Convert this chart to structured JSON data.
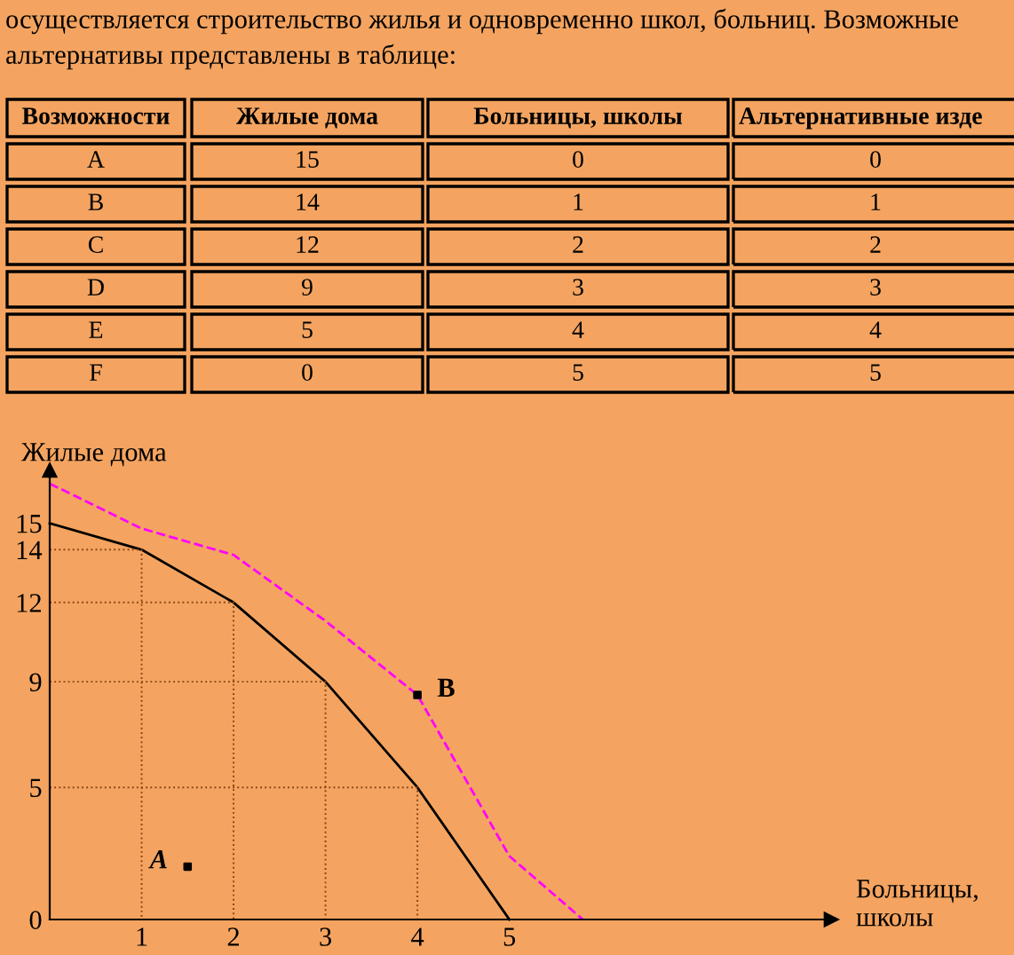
{
  "chart_data": {
    "type": "line",
    "xlabel": "Больницы, школы",
    "ylabel": "Жилые дома",
    "xlim": [
      0,
      8.5
    ],
    "ylim": [
      0,
      17
    ],
    "xticks": [
      1,
      2,
      3,
      4,
      5
    ],
    "yticks": [
      0,
      5,
      9,
      12,
      14,
      15
    ],
    "grid": false,
    "series": [
      {
        "color": "#000000",
        "line_style": "solid",
        "x": [
          0,
          1,
          2,
          3,
          4,
          5
        ],
        "values": [
          15,
          14,
          12,
          9,
          5,
          0
        ]
      },
      {
        "color": "#ff00ff",
        "line_style": "dashed",
        "x": [
          0,
          1,
          2,
          3,
          4,
          5,
          5.8
        ],
        "values": [
          16.5,
          14.8,
          13.8,
          11.3,
          8.5,
          2.4,
          0
        ]
      },
      {
        "type": "scatter",
        "color": "#000000",
        "marker": "square",
        "x": [
          1.5,
          4
        ],
        "values": [
          2,
          8.5
        ]
      },
      {
        "color": "#8b4513",
        "line_style": "dotted",
        "x": [
          0,
          1,
          1
        ],
        "values": [
          14,
          14,
          0
        ]
      },
      {
        "color": "#8b4513",
        "line_style": "dotted",
        "x": [
          0,
          2,
          2
        ],
        "values": [
          12,
          12,
          0
        ]
      },
      {
        "color": "#8b4513",
        "line_style": "dotted",
        "x": [
          0,
          3,
          3
        ],
        "values": [
          9,
          9,
          0
        ]
      },
      {
        "color": "#8b4513",
        "line_style": "dotted",
        "x": [
          0,
          4,
          4
        ],
        "values": [
          5,
          5,
          0
        ]
      }
    ],
    "annotations": [
      "осуществляется строительство жилья и одновременно школ, больниц. Возможные",
      "альтернативы представлены в таблице:",
      "Возможности",
      "Жилые дома",
      "Больницы, школы",
      "Альтернативные изде",
      "A",
      "15",
      "0",
      "0",
      "B",
      "14",
      "1",
      "1",
      "C",
      "12",
      "2",
      "2",
      "D",
      "9",
      "3",
      "3",
      "E",
      "5",
      "4",
      "4",
      "F",
      "0",
      "5",
      "5",
      {
        "text": "A",
        "x": 1.5,
        "y": 2
      },
      {
        "text": "B",
        "x": 4,
        "y": 8.5
      }
    ]
  }
}
